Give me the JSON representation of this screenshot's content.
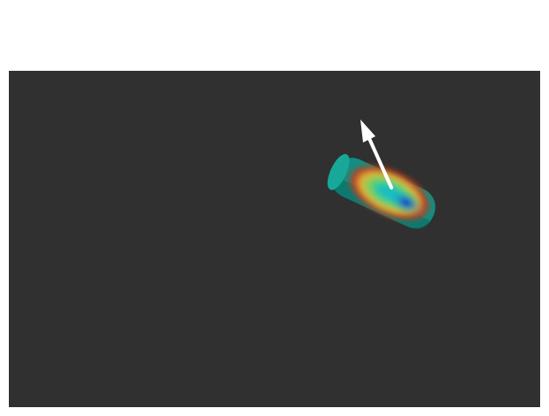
{
  "viewport": {
    "background_color": "#303030",
    "object": {
      "body_color": "#0f8f84",
      "body_dark_color": "#0a6a61",
      "cap_color": "#18a89a",
      "heatmap_colors": [
        "#0a3fd0",
        "#17b6d6",
        "#23c7a9",
        "#7fd058",
        "#e0b43c",
        "#c23a1e"
      ]
    },
    "arrow": {
      "color": "#ffffff"
    }
  }
}
